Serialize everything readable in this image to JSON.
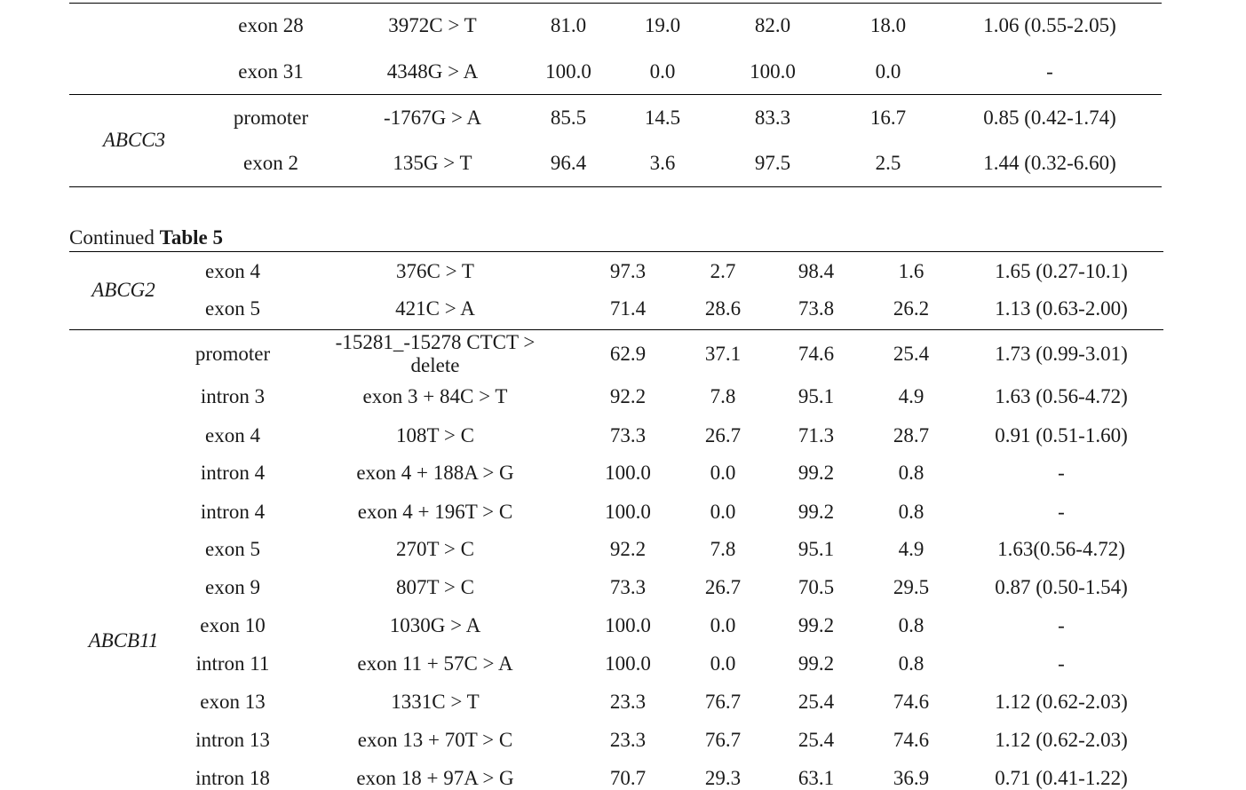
{
  "section1": {
    "rows": [
      {
        "gene": "",
        "region": "exon 28",
        "variant": "3972C > T",
        "v1": "81.0",
        "v2": "19.0",
        "v3": "82.0",
        "v4": "18.0",
        "or": "1.06 (0.55-2.05)"
      },
      {
        "gene": "",
        "region": "exon 31",
        "variant": "4348G > A",
        "v1": "100.0",
        "v2": "0.0",
        "v3": "100.0",
        "v4": "0.0",
        "or": "-"
      },
      {
        "gene": "",
        "region": "promoter",
        "variant": "-1767G > A",
        "v1": "85.5",
        "v2": "14.5",
        "v3": "83.3",
        "v4": "16.7",
        "or": "0.85 (0.42-1.74)"
      },
      {
        "gene": "",
        "region": "exon 2",
        "variant": "135G > T",
        "v1": "96.4",
        "v2": "3.6",
        "v3": "97.5",
        "v4": "2.5",
        "or": "1.44 (0.32-6.60)"
      }
    ],
    "gene_labels": {
      "abcc3": "ABCC3"
    }
  },
  "caption": {
    "prefix": "Continued ",
    "table": "Table 5"
  },
  "section2": {
    "gene_labels": {
      "abcg2": "ABCG2",
      "abcb11": "ABCB11"
    },
    "rows": [
      {
        "region": "exon 4",
        "variant": "376C > T",
        "v1": "97.3",
        "v2": "2.7",
        "v3": "98.4",
        "v4": "1.6",
        "or": "1.65 (0.27-10.1)"
      },
      {
        "region": "exon 5",
        "variant": "421C > A",
        "v1": "71.4",
        "v2": "28.6",
        "v3": "73.8",
        "v4": "26.2",
        "or": "1.13 (0.63-2.00)"
      },
      {
        "region": "promoter",
        "variant": "-15281_-15278 CTCT > delete",
        "v1": "62.9",
        "v2": "37.1",
        "v3": "74.6",
        "v4": "25.4",
        "or": "1.73 (0.99-3.01)"
      },
      {
        "region": "intron 3",
        "variant": "exon 3 + 84C > T",
        "v1": "92.2",
        "v2": "7.8",
        "v3": "95.1",
        "v4": "4.9",
        "or": "1.63 (0.56-4.72)"
      },
      {
        "region": "exon 4",
        "variant": "108T > C",
        "v1": "73.3",
        "v2": "26.7",
        "v3": "71.3",
        "v4": "28.7",
        "or": "0.91 (0.51-1.60)"
      },
      {
        "region": "intron 4",
        "variant": "exon 4 + 188A > G",
        "v1": "100.0",
        "v2": "0.0",
        "v3": "99.2",
        "v4": "0.8",
        "or": "-"
      },
      {
        "region": "intron 4",
        "variant": "exon 4 + 196T > C",
        "v1": "100.0",
        "v2": "0.0",
        "v3": "99.2",
        "v4": "0.8",
        "or": "-"
      },
      {
        "region": "exon 5",
        "variant": "270T > C",
        "v1": "92.2",
        "v2": "7.8",
        "v3": "95.1",
        "v4": "4.9",
        "or": "1.63(0.56-4.72)"
      },
      {
        "region": "exon 9",
        "variant": "807T > C",
        "v1": "73.3",
        "v2": "26.7",
        "v3": "70.5",
        "v4": "29.5",
        "or": "0.87 (0.50-1.54)"
      },
      {
        "region": "exon 10",
        "variant": "1030G > A",
        "v1": "100.0",
        "v2": "0.0",
        "v3": "99.2",
        "v4": "0.8",
        "or": "-"
      },
      {
        "region": "intron 11",
        "variant": "exon 11 + 57C > A",
        "v1": "100.0",
        "v2": "0.0",
        "v3": "99.2",
        "v4": "0.8",
        "or": "-"
      },
      {
        "region": "exon 13",
        "variant": "1331C > T",
        "v1": "23.3",
        "v2": "76.7",
        "v3": "25.4",
        "v4": "74.6",
        "or": "1.12 (0.62-2.03)"
      },
      {
        "region": "intron 13",
        "variant": "exon 13 + 70T > C",
        "v1": "23.3",
        "v2": "76.7",
        "v3": "25.4",
        "v4": "74.6",
        "or": "1.12 (0.62-2.03)"
      },
      {
        "region": "intron 18",
        "variant": "exon 18 + 97A > G",
        "v1": "70.7",
        "v2": "29.3",
        "v3": "63.1",
        "v4": "36.9",
        "or": "0.71 (0.41-1.22)"
      }
    ]
  }
}
